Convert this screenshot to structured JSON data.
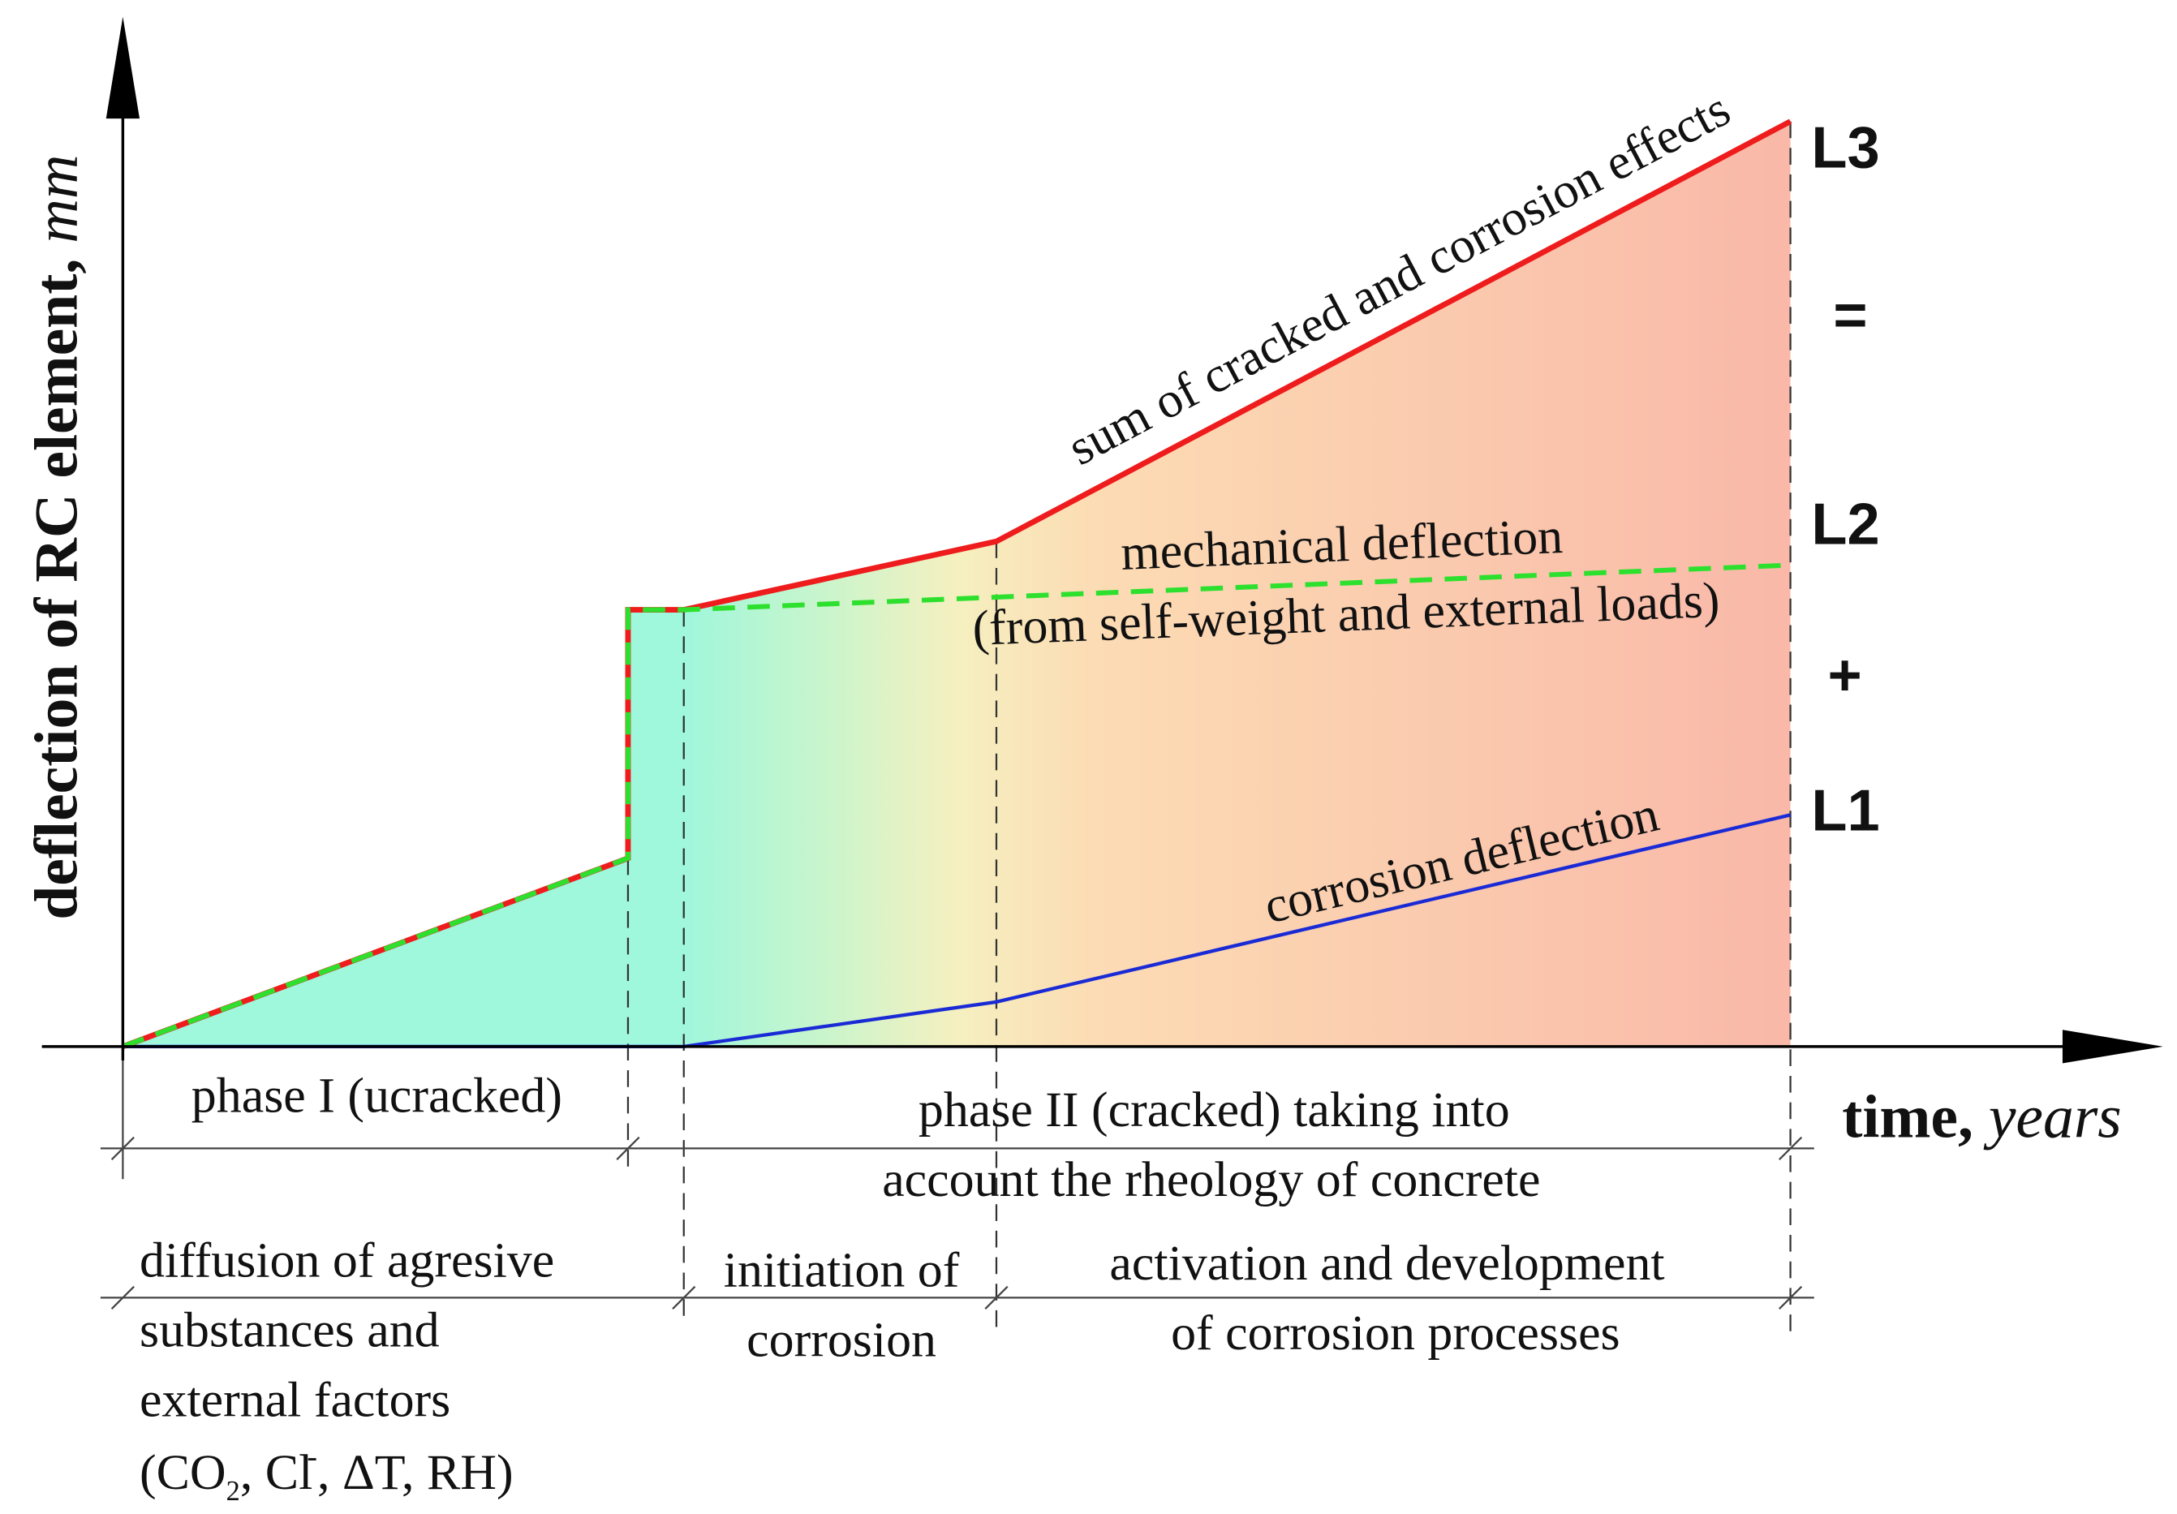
{
  "axes": {
    "y_label": "deflection of RC element,",
    "y_unit": "mm",
    "x_label": "time,",
    "x_unit": "years"
  },
  "curves": [
    {
      "label": "sum of cracked and corrosion effects"
    },
    {
      "label": "mechanical deflection",
      "sublabel": "(from self-weight and external loads)"
    },
    {
      "label": "corrosion deflection"
    }
  ],
  "levels": [
    "L3",
    "=",
    "L2",
    "+",
    "L1"
  ],
  "phases": [
    {
      "lines": [
        "phase I (ucracked)"
      ]
    },
    {
      "lines": [
        "phase II (cracked) taking into",
        "account the rheology of concrete"
      ]
    }
  ],
  "stages": [
    {
      "lines": [
        "diffusion of agresive",
        "substances and",
        "external factors"
      ],
      "formula": {
        "a": "(CO",
        "sub": "2",
        "b": ", Cl",
        "sup": "-",
        "c": ", ΔT, RH)"
      }
    },
    {
      "lines": [
        "initiation of",
        "corrosion"
      ]
    },
    {
      "lines": [
        "activation and development",
        "of corrosion processes"
      ]
    }
  ]
}
